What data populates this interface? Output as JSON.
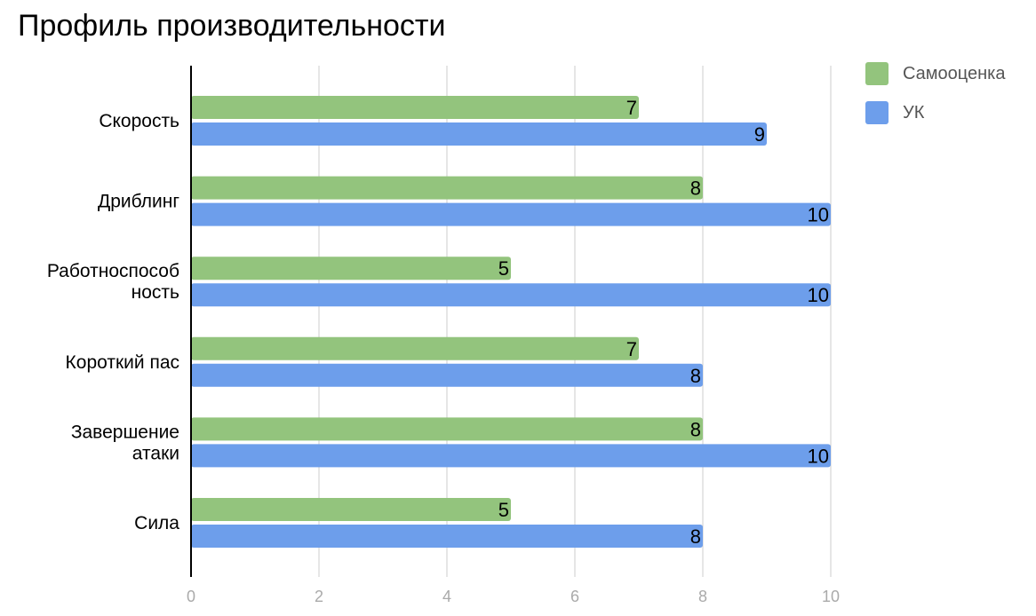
{
  "chart_data": {
    "type": "bar",
    "orientation": "horizontal",
    "title": "Профиль производительности",
    "categories": [
      [
        "Скорость"
      ],
      [
        "Дриблинг"
      ],
      [
        "Работноспособ",
        "ность"
      ],
      [
        "Короткий пас"
      ],
      [
        "Завершение",
        "атаки"
      ],
      [
        "Сила"
      ]
    ],
    "series": [
      {
        "name": "Самооценка",
        "color": "#93c47d",
        "values": [
          7,
          8,
          5,
          7,
          8,
          5
        ]
      },
      {
        "name": "УК",
        "color": "#6d9eeb",
        "values": [
          9,
          10,
          10,
          8,
          10,
          8
        ]
      }
    ],
    "xlim": [
      0,
      10
    ],
    "x_ticks": [
      0,
      2,
      4,
      6,
      8,
      10
    ],
    "grid": true,
    "legend_position": "right",
    "data_labels": true
  }
}
